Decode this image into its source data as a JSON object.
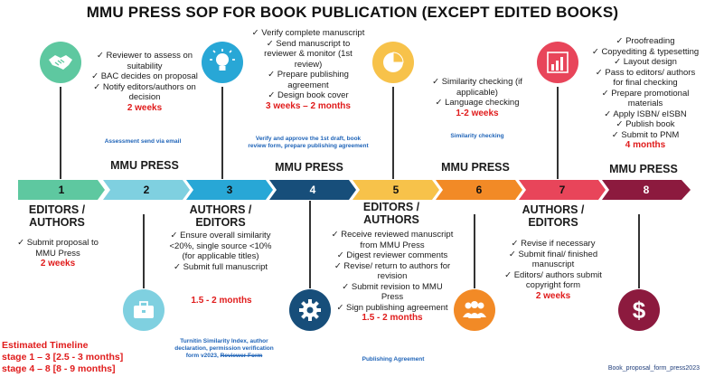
{
  "title": "MMU PRESS SOP FOR BOOK PUBLICATION (EXCEPT EDITED BOOKS)",
  "corner_text": "Book_proposal_form_press2023",
  "steps": [
    {
      "num": "1",
      "color": "#5ec8a0"
    },
    {
      "num": "2",
      "color": "#7fd0e0"
    },
    {
      "num": "3",
      "color": "#28a7d6"
    },
    {
      "num": "4",
      "color": "#174e7a"
    },
    {
      "num": "5",
      "color": "#f7c24a"
    },
    {
      "num": "6",
      "color": "#f28a26"
    },
    {
      "num": "7",
      "color": "#e8455a"
    },
    {
      "num": "8",
      "color": "#8c1a3e"
    }
  ],
  "top": {
    "s2": {
      "items": [
        "Reviewer to assess on suitability",
        "BAC decides on proposal",
        "Notify editors/authors on decision"
      ],
      "duration": "2 weeks",
      "note": "Assessment send via email",
      "actor": "MMU PRESS"
    },
    "s4": {
      "items": [
        "Verify complete manuscript",
        "Send manuscript to reviewer & monitor (1st review)",
        "Prepare publishing agreement",
        "Design book cover"
      ],
      "duration": "3 weeks – 2 months",
      "note": "Verify and approve the 1st draft, book review form, prepare publishing agreement",
      "actor": "MMU PRESS"
    },
    "s6": {
      "items": [
        "Similarity checking (if applicable)",
        "Language checking"
      ],
      "duration": "1-2 weeks",
      "note": "Similarity checking",
      "actor": "MMU PRESS"
    },
    "s8": {
      "items": [
        "Proofreading",
        "Copyediting & typesetting",
        "Layout design",
        "Pass to editors/ authors for final checking",
        "Prepare promotional materials",
        "Apply ISBN/ eISBN",
        "Publish book",
        "Submit to PNM"
      ],
      "duration": "4  months",
      "actor": "MMU PRESS"
    }
  },
  "bottom": {
    "s1": {
      "actor": "EDITORS / AUTHORS",
      "items": [
        "Submit proposal to MMU Press"
      ],
      "duration": "2 weeks"
    },
    "s3": {
      "actor": "AUTHORS / EDITORS",
      "items": [
        "Ensure overall similarity <20%, single source <10% (for applicable titles)",
        "Submit full manuscript"
      ],
      "duration": "1.5 - 2 months",
      "note": "Turnitin Similarity Index, author declaration, permission verification form v2023,",
      "note_strike": "Reviewer Form"
    },
    "s5": {
      "actor": "EDITORS / AUTHORS",
      "items": [
        "Receive reviewed manuscript from MMU Press",
        "Digest reviewer comments",
        "Revise/ return to authors for revision",
        "Submit revision to MMU Press",
        "Sign publishing agreement"
      ],
      "duration": "1.5 - 2 months",
      "note": "Publishing Agreement"
    },
    "s7": {
      "actor": "AUTHORS / EDITORS",
      "items": [
        "Revise if necessary",
        "Submit final/ finished manuscript",
        "Editors/ authors submit copyright form"
      ],
      "duration": "2 weeks"
    }
  },
  "timeline": {
    "heading": "Estimated Timeline",
    "line1": "stage 1 – 3 [2.5 - 3 months]",
    "line2": "stage 4 – 8 [8 - 9 months]"
  },
  "icons": [
    "handshake-icon",
    "lightbulb-icon",
    "pie-chart-icon",
    "bar-chart-icon",
    "briefcase-icon",
    "gear-icon",
    "people-icon",
    "dollar-icon"
  ],
  "bullet": "✓"
}
